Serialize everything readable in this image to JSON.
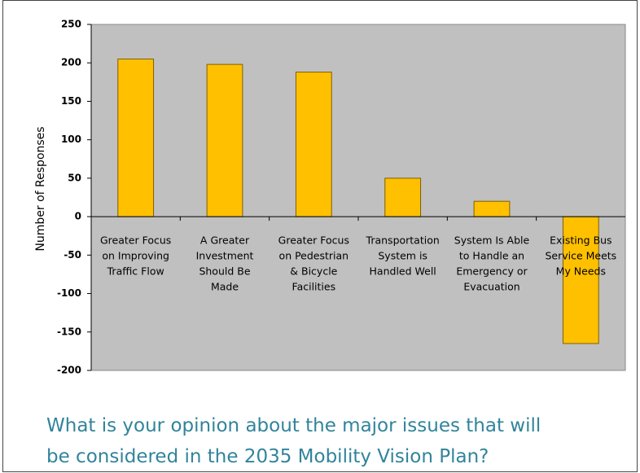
{
  "chart_data": {
    "type": "bar",
    "y_label": "Number of Responses",
    "categories": [
      [
        "Greater Focus",
        "on Improving",
        "Traffic Flow"
      ],
      [
        "A Greater",
        "Investment",
        "Should Be",
        "Made"
      ],
      [
        "Greater Focus",
        "on Pedestrian",
        "& Bicycle",
        "Facilities"
      ],
      [
        "Transportation",
        "System is",
        "Handled Well"
      ],
      [
        "System Is Able",
        "to Handle an",
        "Emergency or",
        "Evacuation"
      ],
      [
        "Existing Bus",
        "Service Meets",
        "My Needs"
      ]
    ],
    "values": [
      205,
      198,
      188,
      50,
      20,
      -165
    ],
    "color": "#ffc000",
    "ylim": [
      -200,
      250
    ],
    "yticks": [
      -200,
      -150,
      -100,
      -50,
      0,
      50,
      100,
      150,
      200,
      250
    ],
    "grid": false,
    "caption": [
      "What is your opinion about the major issues that will",
      "be considered in the 2035 Mobility Vision Plan?"
    ]
  }
}
